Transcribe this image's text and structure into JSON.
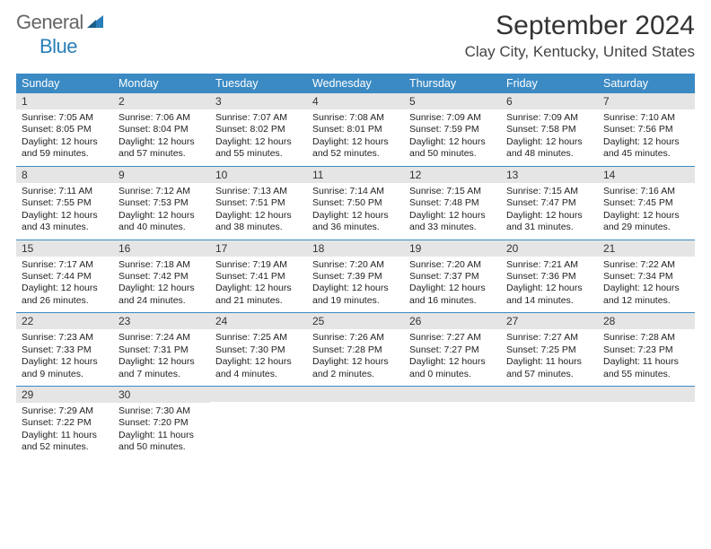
{
  "logo": {
    "general": "General",
    "blue": "Blue"
  },
  "title": "September 2024",
  "location": "Clay City, Kentucky, United States",
  "colors": {
    "header_bg": "#3b8ac4",
    "header_text": "#ffffff",
    "daynum_bg": "#e5e5e5",
    "border": "#3b8ac4",
    "logo_blue": "#2a7fba",
    "logo_gray": "#666666"
  },
  "weekdays": [
    "Sunday",
    "Monday",
    "Tuesday",
    "Wednesday",
    "Thursday",
    "Friday",
    "Saturday"
  ],
  "days": [
    {
      "n": 1,
      "sr": "7:05 AM",
      "ss": "8:05 PM",
      "dl": "12 hours and 59 minutes."
    },
    {
      "n": 2,
      "sr": "7:06 AM",
      "ss": "8:04 PM",
      "dl": "12 hours and 57 minutes."
    },
    {
      "n": 3,
      "sr": "7:07 AM",
      "ss": "8:02 PM",
      "dl": "12 hours and 55 minutes."
    },
    {
      "n": 4,
      "sr": "7:08 AM",
      "ss": "8:01 PM",
      "dl": "12 hours and 52 minutes."
    },
    {
      "n": 5,
      "sr": "7:09 AM",
      "ss": "7:59 PM",
      "dl": "12 hours and 50 minutes."
    },
    {
      "n": 6,
      "sr": "7:09 AM",
      "ss": "7:58 PM",
      "dl": "12 hours and 48 minutes."
    },
    {
      "n": 7,
      "sr": "7:10 AM",
      "ss": "7:56 PM",
      "dl": "12 hours and 45 minutes."
    },
    {
      "n": 8,
      "sr": "7:11 AM",
      "ss": "7:55 PM",
      "dl": "12 hours and 43 minutes."
    },
    {
      "n": 9,
      "sr": "7:12 AM",
      "ss": "7:53 PM",
      "dl": "12 hours and 40 minutes."
    },
    {
      "n": 10,
      "sr": "7:13 AM",
      "ss": "7:51 PM",
      "dl": "12 hours and 38 minutes."
    },
    {
      "n": 11,
      "sr": "7:14 AM",
      "ss": "7:50 PM",
      "dl": "12 hours and 36 minutes."
    },
    {
      "n": 12,
      "sr": "7:15 AM",
      "ss": "7:48 PM",
      "dl": "12 hours and 33 minutes."
    },
    {
      "n": 13,
      "sr": "7:15 AM",
      "ss": "7:47 PM",
      "dl": "12 hours and 31 minutes."
    },
    {
      "n": 14,
      "sr": "7:16 AM",
      "ss": "7:45 PM",
      "dl": "12 hours and 29 minutes."
    },
    {
      "n": 15,
      "sr": "7:17 AM",
      "ss": "7:44 PM",
      "dl": "12 hours and 26 minutes."
    },
    {
      "n": 16,
      "sr": "7:18 AM",
      "ss": "7:42 PM",
      "dl": "12 hours and 24 minutes."
    },
    {
      "n": 17,
      "sr": "7:19 AM",
      "ss": "7:41 PM",
      "dl": "12 hours and 21 minutes."
    },
    {
      "n": 18,
      "sr": "7:20 AM",
      "ss": "7:39 PM",
      "dl": "12 hours and 19 minutes."
    },
    {
      "n": 19,
      "sr": "7:20 AM",
      "ss": "7:37 PM",
      "dl": "12 hours and 16 minutes."
    },
    {
      "n": 20,
      "sr": "7:21 AM",
      "ss": "7:36 PM",
      "dl": "12 hours and 14 minutes."
    },
    {
      "n": 21,
      "sr": "7:22 AM",
      "ss": "7:34 PM",
      "dl": "12 hours and 12 minutes."
    },
    {
      "n": 22,
      "sr": "7:23 AM",
      "ss": "7:33 PM",
      "dl": "12 hours and 9 minutes."
    },
    {
      "n": 23,
      "sr": "7:24 AM",
      "ss": "7:31 PM",
      "dl": "12 hours and 7 minutes."
    },
    {
      "n": 24,
      "sr": "7:25 AM",
      "ss": "7:30 PM",
      "dl": "12 hours and 4 minutes."
    },
    {
      "n": 25,
      "sr": "7:26 AM",
      "ss": "7:28 PM",
      "dl": "12 hours and 2 minutes."
    },
    {
      "n": 26,
      "sr": "7:27 AM",
      "ss": "7:27 PM",
      "dl": "12 hours and 0 minutes."
    },
    {
      "n": 27,
      "sr": "7:27 AM",
      "ss": "7:25 PM",
      "dl": "11 hours and 57 minutes."
    },
    {
      "n": 28,
      "sr": "7:28 AM",
      "ss": "7:23 PM",
      "dl": "11 hours and 55 minutes."
    },
    {
      "n": 29,
      "sr": "7:29 AM",
      "ss": "7:22 PM",
      "dl": "11 hours and 52 minutes."
    },
    {
      "n": 30,
      "sr": "7:30 AM",
      "ss": "7:20 PM",
      "dl": "11 hours and 50 minutes."
    }
  ],
  "labels": {
    "sunrise": "Sunrise:",
    "sunset": "Sunset:",
    "daylight": "Daylight:"
  }
}
